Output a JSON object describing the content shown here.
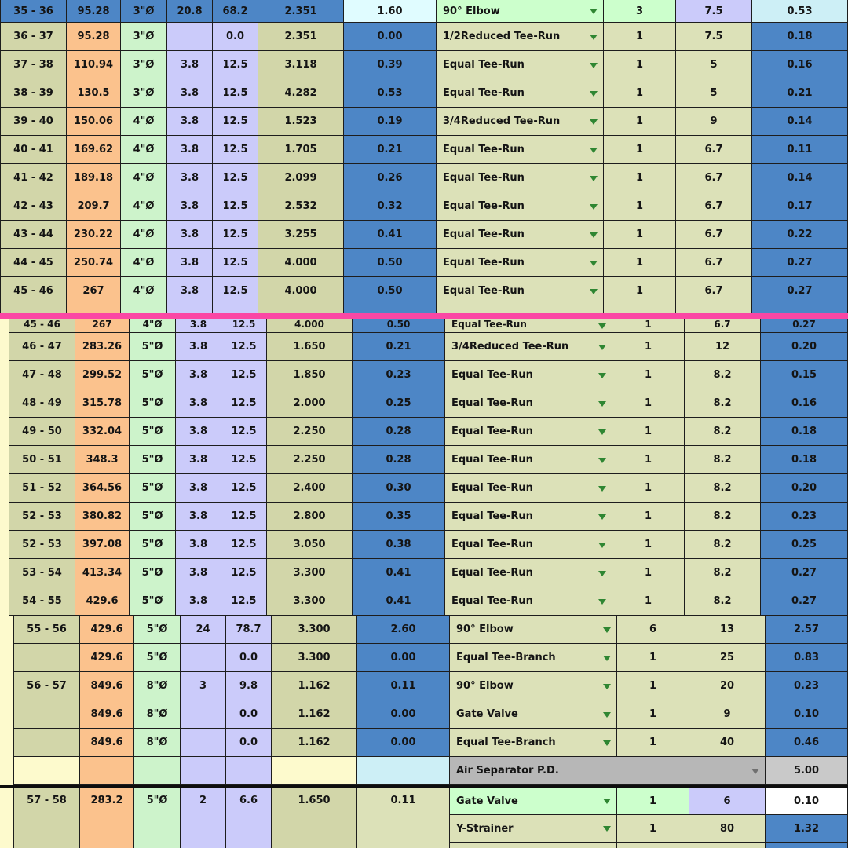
{
  "app": {
    "description": "Spreadsheet pipe sizing / fitting pressure-drop table with split panes"
  },
  "colors": {
    "olive1": "#d2d6a9",
    "olive2": "#dce1b8",
    "orange": "#fbc28d",
    "green": "#cdf3cb",
    "lav": "#cbcbfa",
    "blue": "#4d86c6",
    "mint": "#ccffcc",
    "cyan1": "#e0fcff",
    "cyan2": "#cdeff6",
    "yellow": "#fdfacd",
    "grayA": "#b7b7b7",
    "grayB": "#c9c9c9",
    "white": "#ffffff",
    "split_bar": "#fb47a4",
    "arrow_green": "#2f8632",
    "arrow_gray": "#707070"
  },
  "panes": {
    "top": {
      "rows": [
        {
          "style": "selected",
          "cells": [
            "35 - 36",
            "95.28",
            "3\"Ø",
            "20.8",
            "68.2",
            "2.351",
            "1.60",
            "90° Elbow",
            "3",
            "7.5",
            "0.53"
          ]
        },
        {
          "style": "normal",
          "cells": [
            "36 - 37",
            "95.28",
            "3\"Ø",
            "",
            "0.0",
            "2.351",
            "0.00",
            "1/2Reduced Tee-Run",
            "1",
            "7.5",
            "0.18"
          ]
        },
        {
          "style": "normal",
          "cells": [
            "37 - 38",
            "110.94",
            "3\"Ø",
            "3.8",
            "12.5",
            "3.118",
            "0.39",
            "Equal Tee-Run",
            "1",
            "5",
            "0.16"
          ]
        },
        {
          "style": "normal",
          "cells": [
            "38 - 39",
            "130.5",
            "3\"Ø",
            "3.8",
            "12.5",
            "4.282",
            "0.53",
            "Equal Tee-Run",
            "1",
            "5",
            "0.21"
          ]
        },
        {
          "style": "normal",
          "cells": [
            "39 - 40",
            "150.06",
            "4\"Ø",
            "3.8",
            "12.5",
            "1.523",
            "0.19",
            "3/4Reduced Tee-Run",
            "1",
            "9",
            "0.14"
          ]
        },
        {
          "style": "normal",
          "cells": [
            "40 - 41",
            "169.62",
            "4\"Ø",
            "3.8",
            "12.5",
            "1.705",
            "0.21",
            "Equal Tee-Run",
            "1",
            "6.7",
            "0.11"
          ]
        },
        {
          "style": "normal",
          "cells": [
            "41 - 42",
            "189.18",
            "4\"Ø",
            "3.8",
            "12.5",
            "2.099",
            "0.26",
            "Equal Tee-Run",
            "1",
            "6.7",
            "0.14"
          ]
        },
        {
          "style": "normal",
          "cells": [
            "42 - 43",
            "209.7",
            "4\"Ø",
            "3.8",
            "12.5",
            "2.532",
            "0.32",
            "Equal Tee-Run",
            "1",
            "6.7",
            "0.17"
          ]
        },
        {
          "style": "normal",
          "cells": [
            "43 - 44",
            "230.22",
            "4\"Ø",
            "3.8",
            "12.5",
            "3.255",
            "0.41",
            "Equal Tee-Run",
            "1",
            "6.7",
            "0.22"
          ]
        },
        {
          "style": "normal",
          "cells": [
            "44 - 45",
            "250.74",
            "4\"Ø",
            "3.8",
            "12.5",
            "4.000",
            "0.50",
            "Equal Tee-Run",
            "1",
            "6.7",
            "0.27"
          ]
        },
        {
          "style": "normal",
          "cells": [
            "45 - 46",
            "267",
            "4\"Ø",
            "3.8",
            "12.5",
            "4.000",
            "0.50",
            "Equal Tee-Run",
            "1",
            "6.7",
            "0.27"
          ]
        }
      ]
    },
    "middle": {
      "clipped_row": {
        "style": "normal",
        "cells": [
          "45 - 46",
          "267",
          "4\"Ø",
          "3.8",
          "12.5",
          "4.000",
          "0.50",
          "Equal Tee-Run",
          "1",
          "6.7",
          "0.27"
        ]
      },
      "rows": [
        {
          "style": "normal",
          "cells": [
            "46 - 47",
            "283.26",
            "5\"Ø",
            "3.8",
            "12.5",
            "1.650",
            "0.21",
            "3/4Reduced Tee-Run",
            "1",
            "12",
            "0.20"
          ]
        },
        {
          "style": "normal",
          "cells": [
            "47 - 48",
            "299.52",
            "5\"Ø",
            "3.8",
            "12.5",
            "1.850",
            "0.23",
            "Equal Tee-Run",
            "1",
            "8.2",
            "0.15"
          ]
        },
        {
          "style": "normal",
          "cells": [
            "48 - 49",
            "315.78",
            "5\"Ø",
            "3.8",
            "12.5",
            "2.000",
            "0.25",
            "Equal Tee-Run",
            "1",
            "8.2",
            "0.16"
          ]
        },
        {
          "style": "normal",
          "cells": [
            "49 - 50",
            "332.04",
            "5\"Ø",
            "3.8",
            "12.5",
            "2.250",
            "0.28",
            "Equal Tee-Run",
            "1",
            "8.2",
            "0.18"
          ]
        },
        {
          "style": "normal",
          "cells": [
            "50 - 51",
            "348.3",
            "5\"Ø",
            "3.8",
            "12.5",
            "2.250",
            "0.28",
            "Equal Tee-Run",
            "1",
            "8.2",
            "0.18"
          ]
        },
        {
          "style": "normal",
          "cells": [
            "51 - 52",
            "364.56",
            "5\"Ø",
            "3.8",
            "12.5",
            "2.400",
            "0.30",
            "Equal Tee-Run",
            "1",
            "8.2",
            "0.20"
          ]
        },
        {
          "style": "normal",
          "cells": [
            "52 - 53",
            "380.82",
            "5\"Ø",
            "3.8",
            "12.5",
            "2.800",
            "0.35",
            "Equal Tee-Run",
            "1",
            "8.2",
            "0.23"
          ]
        },
        {
          "style": "normal",
          "cells": [
            "52 - 53",
            "397.08",
            "5\"Ø",
            "3.8",
            "12.5",
            "3.050",
            "0.38",
            "Equal Tee-Run",
            "1",
            "8.2",
            "0.25"
          ]
        },
        {
          "style": "normal",
          "cells": [
            "53 - 54",
            "413.34",
            "5\"Ø",
            "3.8",
            "12.5",
            "3.300",
            "0.41",
            "Equal Tee-Run",
            "1",
            "8.2",
            "0.27"
          ]
        },
        {
          "style": "normal",
          "cells": [
            "54 - 55",
            "429.6",
            "5\"Ø",
            "3.8",
            "12.5",
            "3.300",
            "0.41",
            "Equal Tee-Run",
            "1",
            "8.2",
            "0.27"
          ]
        }
      ]
    },
    "bottom": {
      "rows": [
        {
          "style": "normal",
          "cells": [
            "55 - 56",
            "429.6",
            "5\"Ø",
            "24",
            "78.7",
            "3.300",
            "2.60",
            "90° Elbow",
            "6",
            "13",
            "2.57"
          ]
        },
        {
          "style": "normal",
          "cells": [
            "",
            "429.6",
            "5\"Ø",
            "",
            "0.0",
            "3.300",
            "0.00",
            "Equal Tee-Branch",
            "1",
            "25",
            "0.83"
          ]
        },
        {
          "style": "normal",
          "cells": [
            "56 - 57",
            "849.6",
            "8\"Ø",
            "3",
            "9.8",
            "1.162",
            "0.11",
            "90° Elbow",
            "1",
            "20",
            "0.23"
          ]
        },
        {
          "style": "normal",
          "cells": [
            "",
            "849.6",
            "8\"Ø",
            "",
            "0.0",
            "1.162",
            "0.00",
            "Gate Valve",
            "1",
            "9",
            "0.10"
          ]
        },
        {
          "style": "normal",
          "cells": [
            "",
            "849.6",
            "8\"Ø",
            "",
            "0.0",
            "1.162",
            "0.00",
            "Equal Tee-Branch",
            "1",
            "40",
            "0.46"
          ]
        }
      ],
      "air_separator": {
        "label": "Air Separator P.D.",
        "value": "5.00"
      },
      "block_57_58": {
        "left_cells": [
          "57 - 58",
          "283.2",
          "5\"Ø",
          "2",
          "6.6",
          "1.650",
          "0.11"
        ],
        "sub_rows": [
          {
            "style": "gate",
            "fitting": "Gate Valve",
            "qty": "1",
            "len": "6",
            "pd": "0.10"
          },
          {
            "style": "normal",
            "fitting": "Y-Strainer",
            "qty": "1",
            "len": "80",
            "pd": "1.32"
          },
          {
            "style": "partial",
            "fitting": "",
            "qty": "",
            "len": "",
            "pd": ""
          }
        ]
      }
    }
  }
}
